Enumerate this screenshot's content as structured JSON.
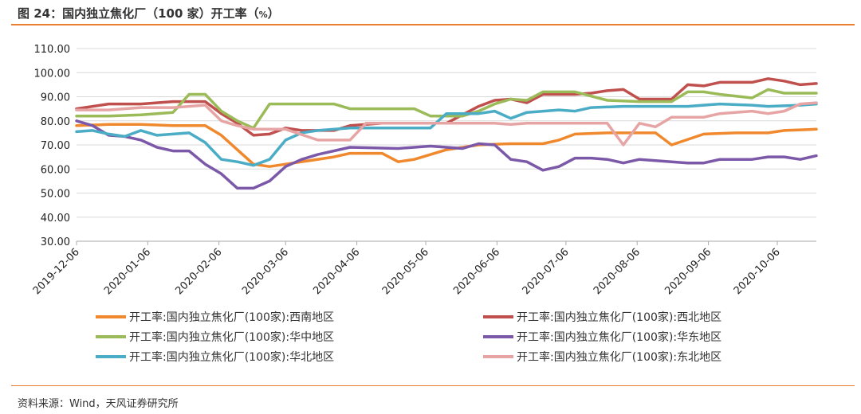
{
  "header": {
    "title": "图 24：国内独立焦化厂（100 家）开工率（",
    "unit": "%",
    "title_end": "）"
  },
  "footer": {
    "source": "资料来源：Wind，天风证券研究所"
  },
  "chart_data": {
    "type": "line",
    "ylim": [
      30,
      110
    ],
    "yticks": [
      "30.00",
      "40.00",
      "50.00",
      "60.00",
      "70.00",
      "80.00",
      "90.00",
      "100.00",
      "110.00"
    ],
    "xlim": [
      "2019-12-06",
      "2020-10-23"
    ],
    "xticks": [
      "2019-12-06",
      "2020-01-06",
      "2020-02-06",
      "2020-03-06",
      "2020-04-06",
      "2020-05-06",
      "2020-06-06",
      "2020-07-06",
      "2020-08-06",
      "2020-09-06",
      "2020-10-06"
    ],
    "legend_position": "bottom",
    "series": [
      {
        "name": "开工率:国内独立焦化厂(100家):西南地区",
        "color": "#f0892d",
        "points": [
          [
            "2019-12-06",
            78
          ],
          [
            "2019-12-20",
            78.5
          ],
          [
            "2020-01-03",
            78.5
          ],
          [
            "2020-01-17",
            78
          ],
          [
            "2020-01-31",
            78
          ],
          [
            "2020-02-07",
            74
          ],
          [
            "2020-02-14",
            68
          ],
          [
            "2020-02-21",
            62
          ],
          [
            "2020-02-28",
            61
          ],
          [
            "2020-03-06",
            62
          ],
          [
            "2020-03-13",
            63
          ],
          [
            "2020-03-27",
            65
          ],
          [
            "2020-04-03",
            66.5
          ],
          [
            "2020-04-17",
            66.5
          ],
          [
            "2020-04-24",
            63
          ],
          [
            "2020-05-01",
            64
          ],
          [
            "2020-05-15",
            68
          ],
          [
            "2020-05-29",
            70
          ],
          [
            "2020-06-12",
            70.5
          ],
          [
            "2020-06-26",
            70.5
          ],
          [
            "2020-07-03",
            72
          ],
          [
            "2020-07-10",
            74.5
          ],
          [
            "2020-07-24",
            75
          ],
          [
            "2020-08-07",
            75
          ],
          [
            "2020-08-14",
            75
          ],
          [
            "2020-08-21",
            70
          ],
          [
            "2020-09-04",
            74.5
          ],
          [
            "2020-09-18",
            75
          ],
          [
            "2020-10-02",
            75
          ],
          [
            "2020-10-09",
            76
          ],
          [
            "2020-10-23",
            76.5
          ]
        ]
      },
      {
        "name": "开工率:国内独立焦化厂(100家):西北地区",
        "color": "#c0504d",
        "points": [
          [
            "2019-12-06",
            85
          ],
          [
            "2019-12-20",
            87
          ],
          [
            "2020-01-03",
            87
          ],
          [
            "2020-01-17",
            88
          ],
          [
            "2020-01-31",
            88
          ],
          [
            "2020-02-07",
            83
          ],
          [
            "2020-02-14",
            79
          ],
          [
            "2020-02-21",
            74
          ],
          [
            "2020-02-28",
            74.5
          ],
          [
            "2020-03-06",
            77
          ],
          [
            "2020-03-13",
            76
          ],
          [
            "2020-03-27",
            76
          ],
          [
            "2020-04-03",
            78
          ],
          [
            "2020-04-17",
            79
          ],
          [
            "2020-05-01",
            79
          ],
          [
            "2020-05-15",
            79
          ],
          [
            "2020-05-29",
            86
          ],
          [
            "2020-06-05",
            88.5
          ],
          [
            "2020-06-12",
            89
          ],
          [
            "2020-06-19",
            87.5
          ],
          [
            "2020-06-26",
            91
          ],
          [
            "2020-07-10",
            91
          ],
          [
            "2020-07-17",
            91.5
          ],
          [
            "2020-07-24",
            92.5
          ],
          [
            "2020-07-31",
            93
          ],
          [
            "2020-08-07",
            89
          ],
          [
            "2020-08-21",
            89
          ],
          [
            "2020-08-28",
            95
          ],
          [
            "2020-09-04",
            94.5
          ],
          [
            "2020-09-11",
            96
          ],
          [
            "2020-09-25",
            96
          ],
          [
            "2020-10-02",
            97.5
          ],
          [
            "2020-10-09",
            96.5
          ],
          [
            "2020-10-16",
            95
          ],
          [
            "2020-10-23",
            95.5
          ]
        ]
      },
      {
        "name": "开工率:国内独立焦化厂(100家):华中地区",
        "color": "#9bbb59",
        "points": [
          [
            "2019-12-06",
            82
          ],
          [
            "2019-12-20",
            82
          ],
          [
            "2020-01-03",
            82.5
          ],
          [
            "2020-01-17",
            83.5
          ],
          [
            "2020-01-24",
            91
          ],
          [
            "2020-01-31",
            91
          ],
          [
            "2020-02-07",
            84
          ],
          [
            "2020-02-14",
            80
          ],
          [
            "2020-02-21",
            77
          ],
          [
            "2020-02-28",
            87
          ],
          [
            "2020-03-13",
            87
          ],
          [
            "2020-03-27",
            87
          ],
          [
            "2020-04-03",
            85
          ],
          [
            "2020-04-17",
            85
          ],
          [
            "2020-05-01",
            85
          ],
          [
            "2020-05-08",
            82
          ],
          [
            "2020-05-15",
            82
          ],
          [
            "2020-05-22",
            82
          ],
          [
            "2020-05-29",
            84
          ],
          [
            "2020-06-05",
            87
          ],
          [
            "2020-06-12",
            89
          ],
          [
            "2020-06-19",
            88.5
          ],
          [
            "2020-06-26",
            92
          ],
          [
            "2020-07-10",
            92
          ],
          [
            "2020-07-24",
            88.5
          ],
          [
            "2020-08-07",
            88
          ],
          [
            "2020-08-21",
            88
          ],
          [
            "2020-08-28",
            92
          ],
          [
            "2020-09-04",
            92
          ],
          [
            "2020-09-11",
            91
          ],
          [
            "2020-09-25",
            89.5
          ],
          [
            "2020-10-02",
            93
          ],
          [
            "2020-10-09",
            91.5
          ],
          [
            "2020-10-23",
            91.5
          ]
        ]
      },
      {
        "name": "开工率:国内独立焦化厂(100家):华东地区",
        "color": "#7b58a8",
        "points": [
          [
            "2019-12-06",
            80
          ],
          [
            "2019-12-13",
            78
          ],
          [
            "2019-12-20",
            74
          ],
          [
            "2019-12-27",
            73.5
          ],
          [
            "2020-01-03",
            72
          ],
          [
            "2020-01-10",
            69
          ],
          [
            "2020-01-17",
            67.5
          ],
          [
            "2020-01-24",
            67.5
          ],
          [
            "2020-01-31",
            62
          ],
          [
            "2020-02-07",
            58
          ],
          [
            "2020-02-14",
            52
          ],
          [
            "2020-02-21",
            52
          ],
          [
            "2020-02-28",
            55
          ],
          [
            "2020-03-06",
            61
          ],
          [
            "2020-03-13",
            64
          ],
          [
            "2020-03-20",
            66
          ],
          [
            "2020-04-03",
            69
          ],
          [
            "2020-04-24",
            68.5
          ],
          [
            "2020-05-08",
            69.5
          ],
          [
            "2020-05-22",
            68.5
          ],
          [
            "2020-05-29",
            70.5
          ],
          [
            "2020-06-05",
            70
          ],
          [
            "2020-06-12",
            64
          ],
          [
            "2020-06-19",
            63
          ],
          [
            "2020-06-26",
            59.5
          ],
          [
            "2020-07-03",
            61
          ],
          [
            "2020-07-10",
            64.5
          ],
          [
            "2020-07-17",
            64.5
          ],
          [
            "2020-07-24",
            64
          ],
          [
            "2020-07-31",
            62.5
          ],
          [
            "2020-08-07",
            64
          ],
          [
            "2020-08-14",
            63.5
          ],
          [
            "2020-08-21",
            63
          ],
          [
            "2020-08-28",
            62.5
          ],
          [
            "2020-09-04",
            62.5
          ],
          [
            "2020-09-11",
            64
          ],
          [
            "2020-09-25",
            64
          ],
          [
            "2020-10-02",
            65
          ],
          [
            "2020-10-09",
            65
          ],
          [
            "2020-10-16",
            64
          ],
          [
            "2020-10-23",
            65.5
          ]
        ]
      },
      {
        "name": "开工率:国内独立焦化厂(100家):华北地区",
        "color": "#4bacc6",
        "points": [
          [
            "2019-12-06",
            75.5
          ],
          [
            "2019-12-13",
            76
          ],
          [
            "2019-12-20",
            74.5
          ],
          [
            "2019-12-27",
            73.5
          ],
          [
            "2020-01-03",
            76
          ],
          [
            "2020-01-10",
            74
          ],
          [
            "2020-01-17",
            74.5
          ],
          [
            "2020-01-24",
            75
          ],
          [
            "2020-01-31",
            71
          ],
          [
            "2020-02-07",
            64
          ],
          [
            "2020-02-14",
            63
          ],
          [
            "2020-02-21",
            61.5
          ],
          [
            "2020-02-28",
            64
          ],
          [
            "2020-03-06",
            72
          ],
          [
            "2020-03-13",
            75
          ],
          [
            "2020-03-20",
            76
          ],
          [
            "2020-04-03",
            77
          ],
          [
            "2020-04-24",
            77
          ],
          [
            "2020-05-08",
            77
          ],
          [
            "2020-05-15",
            83
          ],
          [
            "2020-05-29",
            83
          ],
          [
            "2020-06-05",
            84
          ],
          [
            "2020-06-12",
            81
          ],
          [
            "2020-06-19",
            83.5
          ],
          [
            "2020-07-03",
            84.5
          ],
          [
            "2020-07-10",
            84
          ],
          [
            "2020-07-17",
            85.5
          ],
          [
            "2020-07-31",
            86
          ],
          [
            "2020-08-14",
            86
          ],
          [
            "2020-08-28",
            86
          ],
          [
            "2020-09-11",
            87
          ],
          [
            "2020-09-25",
            86.5
          ],
          [
            "2020-10-02",
            86
          ],
          [
            "2020-10-16",
            86.5
          ],
          [
            "2020-10-23",
            87
          ]
        ]
      },
      {
        "name": "开工率:国内独立焦化厂(100家):东北地区",
        "color": "#e6a5a4",
        "points": [
          [
            "2019-12-06",
            84.5
          ],
          [
            "2019-12-20",
            84.5
          ],
          [
            "2020-01-03",
            85.5
          ],
          [
            "2020-01-17",
            85.5
          ],
          [
            "2020-01-31",
            86.5
          ],
          [
            "2020-02-07",
            80
          ],
          [
            "2020-02-14",
            78
          ],
          [
            "2020-02-21",
            76.5
          ],
          [
            "2020-02-28",
            76.5
          ],
          [
            "2020-03-06",
            76.5
          ],
          [
            "2020-03-20",
            72
          ],
          [
            "2020-04-03",
            72
          ],
          [
            "2020-04-10",
            79
          ],
          [
            "2020-04-24",
            79
          ],
          [
            "2020-05-08",
            79
          ],
          [
            "2020-05-22",
            79
          ],
          [
            "2020-05-29",
            79
          ],
          [
            "2020-06-05",
            79
          ],
          [
            "2020-06-12",
            78.5
          ],
          [
            "2020-06-19",
            79
          ],
          [
            "2020-07-03",
            79
          ],
          [
            "2020-07-17",
            79
          ],
          [
            "2020-07-24",
            79
          ],
          [
            "2020-07-31",
            70
          ],
          [
            "2020-08-07",
            79
          ],
          [
            "2020-08-14",
            77.5
          ],
          [
            "2020-08-21",
            81.5
          ],
          [
            "2020-09-04",
            81.5
          ],
          [
            "2020-09-11",
            83
          ],
          [
            "2020-09-25",
            84
          ],
          [
            "2020-10-02",
            83
          ],
          [
            "2020-10-09",
            84
          ],
          [
            "2020-10-16",
            87
          ],
          [
            "2020-10-23",
            87.5
          ]
        ]
      }
    ]
  }
}
